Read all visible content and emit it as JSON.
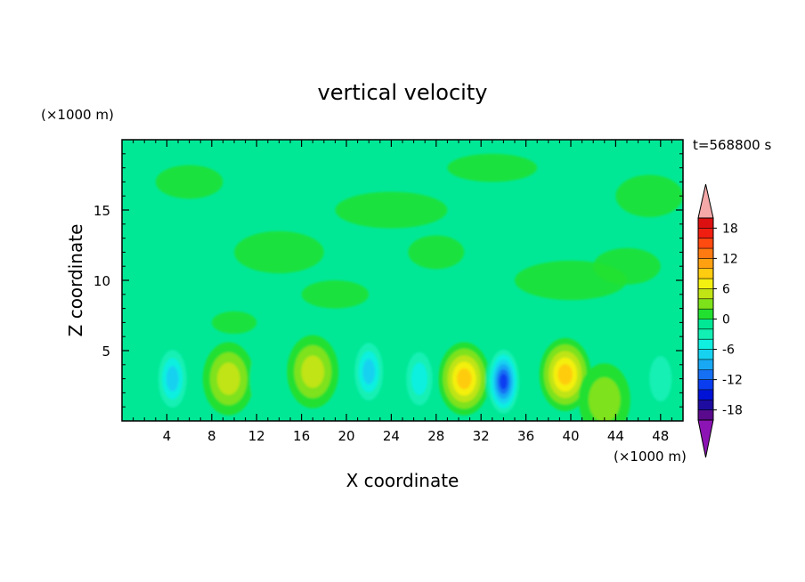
{
  "chart_data": {
    "type": "heatmap",
    "title": "vertical velocity",
    "xlabel": "X coordinate",
    "ylabel": "Z coordinate",
    "x_unit": "(×1000 m)",
    "y_unit": "(×1000 m)",
    "time_label": "t=568800 s",
    "xlim": [
      0,
      50
    ],
    "ylim": [
      0,
      20
    ],
    "x_ticks": [
      4,
      8,
      12,
      16,
      20,
      24,
      28,
      32,
      36,
      40,
      44,
      48
    ],
    "y_ticks": [
      5,
      10,
      15
    ],
    "colorbar": {
      "levels": [
        -20,
        -18,
        -16,
        -14,
        -12,
        -10,
        -8,
        -6,
        -4,
        -2,
        0,
        2,
        4,
        6,
        8,
        10,
        12,
        14,
        16,
        18,
        20
      ],
      "tick_labels": [
        "18",
        "12",
        "6",
        "0",
        "-6",
        "-12",
        "-18"
      ],
      "tick_values": [
        18,
        12,
        6,
        0,
        -6,
        -12,
        -18
      ],
      "colors": [
        "#5a0a8c",
        "#1e0ca0",
        "#0012d6",
        "#0a3cf0",
        "#1670f4",
        "#18a8f4",
        "#16d2f0",
        "#10f0e0",
        "#12f0b4",
        "#00e896",
        "#22e030",
        "#7ee21a",
        "#c0e414",
        "#f4f010",
        "#ffcc10",
        "#ffa010",
        "#ff7a10",
        "#ff4a10",
        "#f01e10",
        "#dc1010"
      ],
      "over_color": "#f4a8a8",
      "under_color": "#8c14b4"
    },
    "features": [
      {
        "x": 9.5,
        "z": 3.0,
        "w": 7.0,
        "label": "updraft"
      },
      {
        "x": 13.0,
        "z": 3.0,
        "w": -3.0,
        "label": "downdraft"
      },
      {
        "x": 17.0,
        "z": 3.5,
        "w": 6.0,
        "label": "updraft"
      },
      {
        "x": 22.0,
        "z": 3.5,
        "w": -8.0,
        "label": "downdraft"
      },
      {
        "x": 26.5,
        "z": 3.0,
        "w": -6.0,
        "label": "downdraft"
      },
      {
        "x": 30.5,
        "z": 3.0,
        "w": 10.0,
        "label": "updraft"
      },
      {
        "x": 34.0,
        "z": 2.8,
        "w": -14.0,
        "label": "downdraft"
      },
      {
        "x": 39.5,
        "z": 3.3,
        "w": 11.0,
        "label": "updraft"
      },
      {
        "x": 43.0,
        "z": 1.5,
        "w": 5.0,
        "label": "updraft"
      },
      {
        "x": 4.5,
        "z": 3.0,
        "w": -8.0,
        "label": "downdraft"
      },
      {
        "x": 48.0,
        "z": 3.0,
        "w": -5.0,
        "label": "downdraft"
      }
    ]
  }
}
